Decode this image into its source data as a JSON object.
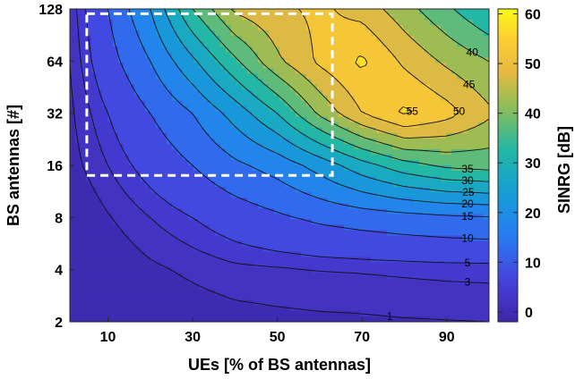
{
  "chart_data": {
    "type": "heatmap",
    "subtype": "filled-contour",
    "xlabel": "UEs [% of BS antennas]",
    "ylabel": "BS antennas [#]",
    "colorbar_label": "SINRG [dB]",
    "x_ticks": [
      "10",
      "30",
      "50",
      "70",
      "90"
    ],
    "x_tick_values": [
      10,
      30,
      50,
      70,
      90
    ],
    "y_ticks": [
      "2",
      "4",
      "8",
      "16",
      "32",
      "64",
      "128"
    ],
    "y_tick_values": [
      2,
      4,
      8,
      16,
      32,
      64,
      128
    ],
    "y_scale": "log2",
    "xlim": [
      1,
      100
    ],
    "ylim": [
      2,
      128
    ],
    "colorbar_ticks": [
      "0",
      "10",
      "20",
      "30",
      "40",
      "50",
      "60"
    ],
    "colorbar_tick_values": [
      0,
      10,
      20,
      30,
      40,
      50,
      60
    ],
    "clim": [
      -2,
      61
    ],
    "colormap": "parula",
    "grid": false,
    "contour_levels": [
      1,
      3,
      5,
      10,
      15,
      20,
      25,
      30,
      35,
      40,
      45,
      50,
      55,
      60
    ],
    "x": [
      1,
      10,
      20,
      30,
      40,
      50,
      60,
      70,
      80,
      90,
      100
    ],
    "y": [
      2,
      4,
      8,
      16,
      32,
      64,
      128
    ],
    "z": [
      [
        -1.5,
        -1.5,
        -1.0,
        -0.5,
        0,
        0.3,
        0.5,
        0.6,
        0.8,
        0.9,
        1.0
      ],
      [
        -1.5,
        -1.0,
        0.5,
        1.5,
        2.4,
        2.7,
        3.0,
        3.2,
        3.4,
        3.6,
        3.7
      ],
      [
        -1.5,
        0.8,
        3.0,
        5.0,
        7.2,
        9.2,
        11.0,
        12.2,
        13.2,
        14.0,
        14.5
      ],
      [
        0.0,
        3.0,
        6.5,
        10.0,
        14.0,
        17.0,
        22.0,
        28.0,
        33.0,
        36.0,
        37.0
      ],
      [
        0.5,
        5.0,
        10.0,
        15.0,
        22.0,
        30.0,
        41.0,
        50.0,
        56.0,
        52.0,
        46.0
      ],
      [
        1.0,
        8.0,
        15.0,
        24.0,
        34.0,
        44.0,
        51.0,
        56.0,
        49.0,
        44.0,
        40.0
      ],
      [
        1.5,
        10.0,
        20.0,
        35.0,
        46.0,
        49.0,
        51.0,
        48.0,
        42.0,
        36.0,
        30.0
      ]
    ],
    "highlight_region": {
      "x_range": [
        5,
        63
      ],
      "y_range": [
        14,
        120
      ],
      "style": "dashed",
      "color": "#ffffff"
    }
  }
}
